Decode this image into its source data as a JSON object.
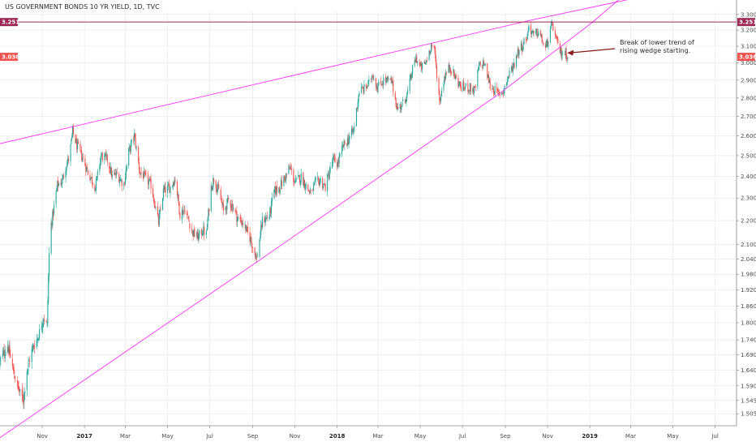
{
  "chart_data": {
    "type": "candlestick",
    "title": "US GOVERNMENT BONDS 10 YR YIELD, 1D, TVC",
    "y_scale": "log",
    "ylim": [
      1.47,
      3.32
    ],
    "y_ticks": [
      1.505,
      1.545,
      1.59,
      1.64,
      1.69,
      1.74,
      1.8,
      1.86,
      1.92,
      1.98,
      2.04,
      2.1,
      2.2,
      2.3,
      2.4,
      2.5,
      2.6,
      2.7,
      2.8,
      2.9,
      3.0,
      3.1,
      3.2,
      3.3
    ],
    "y_tick_labels": [
      "1.505",
      "1.545",
      "1.590",
      "1.640",
      "1.690",
      "1.740",
      "1.800",
      "1.860",
      "1.920",
      "1.980",
      "2.040",
      "2.100",
      "2.200",
      "2.300",
      "2.400",
      "2.500",
      "2.600",
      "2.700",
      "2.800",
      "2.900",
      "3.000",
      "3.100",
      "3.200",
      "3.300"
    ],
    "x_range": [
      "2016-09-01",
      "2019-08-01"
    ],
    "x_ticks": [
      {
        "date": "2016-11-01",
        "label": "Nov",
        "major": false
      },
      {
        "date": "2017-01-01",
        "label": "2017",
        "major": true
      },
      {
        "date": "2017-03-01",
        "label": "Mar",
        "major": false
      },
      {
        "date": "2017-05-01",
        "label": "May",
        "major": false
      },
      {
        "date": "2017-07-01",
        "label": "Jul",
        "major": false
      },
      {
        "date": "2017-09-01",
        "label": "Sep",
        "major": false
      },
      {
        "date": "2017-11-01",
        "label": "Nov",
        "major": false
      },
      {
        "date": "2018-01-01",
        "label": "2018",
        "major": true
      },
      {
        "date": "2018-03-01",
        "label": "Mar",
        "major": false
      },
      {
        "date": "2018-05-01",
        "label": "May",
        "major": false
      },
      {
        "date": "2018-07-01",
        "label": "Jul",
        "major": false
      },
      {
        "date": "2018-09-01",
        "label": "Sep",
        "major": false
      },
      {
        "date": "2018-11-01",
        "label": "Nov",
        "major": false
      },
      {
        "date": "2019-01-01",
        "label": "2019",
        "major": true
      },
      {
        "date": "2019-03-01",
        "label": "Mar",
        "major": false
      },
      {
        "date": "2019-05-01",
        "label": "May",
        "major": false
      },
      {
        "date": "2019-07-01",
        "label": "Jul",
        "major": false
      }
    ],
    "price_path": [
      [
        "2016-09-01",
        1.67
      ],
      [
        "2016-09-12",
        1.72
      ],
      [
        "2016-09-22",
        1.62
      ],
      [
        "2016-10-01",
        1.56
      ],
      [
        "2016-10-05",
        1.55
      ],
      [
        "2016-10-10",
        1.64
      ],
      [
        "2016-10-18",
        1.71
      ],
      [
        "2016-10-26",
        1.75
      ],
      [
        "2016-11-03",
        1.82
      ],
      [
        "2016-11-08",
        1.79
      ],
      [
        "2016-11-12",
        2.15
      ],
      [
        "2016-11-16",
        2.22
      ],
      [
        "2016-11-23",
        2.36
      ],
      [
        "2016-11-30",
        2.38
      ],
      [
        "2016-12-05",
        2.45
      ],
      [
        "2016-12-10",
        2.49
      ],
      [
        "2016-12-15",
        2.62
      ],
      [
        "2016-12-21",
        2.55
      ],
      [
        "2016-12-28",
        2.5
      ],
      [
        "2017-01-06",
        2.42
      ],
      [
        "2017-01-17",
        2.35
      ],
      [
        "2017-01-25",
        2.5
      ],
      [
        "2017-02-03",
        2.48
      ],
      [
        "2017-02-10",
        2.4
      ],
      [
        "2017-02-17",
        2.41
      ],
      [
        "2017-02-27",
        2.36
      ],
      [
        "2017-03-06",
        2.52
      ],
      [
        "2017-03-14",
        2.6
      ],
      [
        "2017-03-22",
        2.42
      ],
      [
        "2017-03-31",
        2.39
      ],
      [
        "2017-04-07",
        2.36
      ],
      [
        "2017-04-18",
        2.19
      ],
      [
        "2017-04-25",
        2.33
      ],
      [
        "2017-05-05",
        2.35
      ],
      [
        "2017-05-12",
        2.39
      ],
      [
        "2017-05-19",
        2.23
      ],
      [
        "2017-05-26",
        2.25
      ],
      [
        "2017-06-06",
        2.15
      ],
      [
        "2017-06-14",
        2.13
      ],
      [
        "2017-06-21",
        2.16
      ],
      [
        "2017-06-26",
        2.14
      ],
      [
        "2017-07-03",
        2.35
      ],
      [
        "2017-07-07",
        2.39
      ],
      [
        "2017-07-14",
        2.33
      ],
      [
        "2017-07-21",
        2.24
      ],
      [
        "2017-07-28",
        2.29
      ],
      [
        "2017-08-04",
        2.26
      ],
      [
        "2017-08-10",
        2.21
      ],
      [
        "2017-08-18",
        2.19
      ],
      [
        "2017-08-29",
        2.12
      ],
      [
        "2017-09-07",
        2.04
      ],
      [
        "2017-09-15",
        2.2
      ],
      [
        "2017-09-25",
        2.22
      ],
      [
        "2017-10-02",
        2.33
      ],
      [
        "2017-10-10",
        2.35
      ],
      [
        "2017-10-25",
        2.44
      ],
      [
        "2017-11-01",
        2.37
      ],
      [
        "2017-11-10",
        2.4
      ],
      [
        "2017-11-16",
        2.36
      ],
      [
        "2017-11-24",
        2.32
      ],
      [
        "2017-12-01",
        2.37
      ],
      [
        "2017-12-08",
        2.38
      ],
      [
        "2017-12-15",
        2.35
      ],
      [
        "2017-12-26",
        2.48
      ],
      [
        "2018-01-02",
        2.46
      ],
      [
        "2018-01-10",
        2.55
      ],
      [
        "2018-01-17",
        2.58
      ],
      [
        "2018-01-25",
        2.63
      ],
      [
        "2018-02-02",
        2.84
      ],
      [
        "2018-02-09",
        2.85
      ],
      [
        "2018-02-16",
        2.88
      ],
      [
        "2018-02-21",
        2.94
      ],
      [
        "2018-02-28",
        2.86
      ],
      [
        "2018-03-09",
        2.9
      ],
      [
        "2018-03-21",
        2.89
      ],
      [
        "2018-03-29",
        2.74
      ],
      [
        "2018-04-06",
        2.77
      ],
      [
        "2018-04-13",
        2.83
      ],
      [
        "2018-04-20",
        2.96
      ],
      [
        "2018-04-25",
        3.03
      ],
      [
        "2018-05-02",
        2.97
      ],
      [
        "2018-05-09",
        3.0
      ],
      [
        "2018-05-17",
        3.11
      ],
      [
        "2018-05-22",
        3.06
      ],
      [
        "2018-05-29",
        2.78
      ],
      [
        "2018-06-05",
        2.92
      ],
      [
        "2018-06-13",
        2.98
      ],
      [
        "2018-06-20",
        2.92
      ],
      [
        "2018-06-29",
        2.86
      ],
      [
        "2018-07-10",
        2.86
      ],
      [
        "2018-07-19",
        2.84
      ],
      [
        "2018-07-25",
        2.98
      ],
      [
        "2018-08-01",
        3.0
      ],
      [
        "2018-08-10",
        2.87
      ],
      [
        "2018-08-22",
        2.82
      ],
      [
        "2018-08-29",
        2.84
      ],
      [
        "2018-09-07",
        2.94
      ],
      [
        "2018-09-14",
        3.0
      ],
      [
        "2018-09-19",
        3.07
      ],
      [
        "2018-09-25",
        3.1
      ],
      [
        "2018-10-03",
        3.17
      ],
      [
        "2018-10-05",
        3.23
      ],
      [
        "2018-10-12",
        3.16
      ],
      [
        "2018-10-19",
        3.19
      ],
      [
        "2018-10-29",
        3.08
      ],
      [
        "2018-11-08",
        3.24
      ],
      [
        "2018-11-13",
        3.14
      ],
      [
        "2018-11-20",
        3.06
      ],
      [
        "2018-11-27",
        3.06
      ],
      [
        "2018-12-01",
        3.04
      ]
    ],
    "trendlines": [
      {
        "name": "upper wedge",
        "points": [
          [
            "2016-08-20",
            2.55
          ],
          [
            "2018-10-05",
            3.26
          ],
          [
            "2019-03-20",
            3.42
          ]
        ]
      },
      {
        "name": "lower wedge",
        "points": [
          [
            "2016-08-20",
            1.42
          ],
          [
            "2017-09-08",
            2.03
          ],
          [
            "2018-08-22",
            2.82
          ],
          [
            "2019-01-05",
            3.25
          ],
          [
            "2019-02-20",
            3.43
          ]
        ]
      }
    ],
    "horizontal_line": {
      "value": 3.251,
      "label": "3.251"
    },
    "last_price": {
      "value": 3.036,
      "label": "3.036"
    },
    "annotation": {
      "lines": [
        "Break of lower trend of",
        "rising wedge starting."
      ],
      "arrow_to": [
        "2018-11-20",
        3.06
      ]
    },
    "colors": {
      "up": "#26a69a",
      "down": "#ef5350",
      "trendline": "#ff33ff",
      "hline": "#9c2755",
      "last_price": "#ef5350",
      "grid": "#e6e6e6",
      "arrow": "#8b1a1a"
    },
    "grid": true
  }
}
